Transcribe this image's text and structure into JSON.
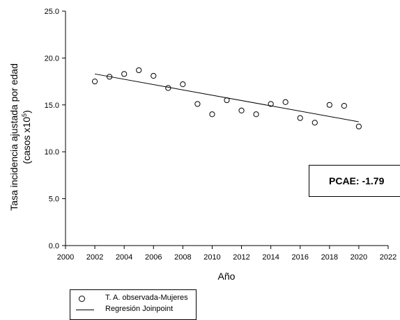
{
  "chart_data": {
    "type": "scatter",
    "xlabel": "Año",
    "ylabel_line1": "Tasa incidencia ajustada por edad",
    "ylabel_line2_prefix": "(casos x10",
    "ylabel_line2_sup": "5",
    "ylabel_line2_suffix": ")",
    "xlim": [
      2000,
      2022
    ],
    "ylim": [
      0,
      25
    ],
    "xticks": [
      "2000",
      "2002",
      "2004",
      "2006",
      "2008",
      "2010",
      "2012",
      "2014",
      "2016",
      "2018",
      "2020",
      "2022"
    ],
    "yticks": [
      "0.0",
      "5.0",
      "10.0",
      "15.0",
      "20.0",
      "25.0"
    ],
    "series": [
      {
        "name": "T. A. observada-Mujeres",
        "kind": "points",
        "x": [
          2002,
          2003,
          2004,
          2005,
          2006,
          2007,
          2008,
          2009,
          2010,
          2011,
          2012,
          2013,
          2014,
          2015,
          2016,
          2017,
          2018,
          2019,
          2020
        ],
        "y": [
          17.5,
          18.0,
          18.3,
          18.7,
          18.1,
          16.8,
          17.2,
          15.1,
          14.0,
          15.5,
          14.4,
          14.0,
          15.1,
          15.3,
          13.6,
          13.1,
          15.0,
          14.9,
          12.7
        ]
      },
      {
        "name": "Regresión Joinpoint",
        "kind": "line",
        "x": [
          2002,
          2020
        ],
        "y": [
          18.3,
          13.2
        ]
      }
    ],
    "annotation": "PCAE: -1.79"
  }
}
